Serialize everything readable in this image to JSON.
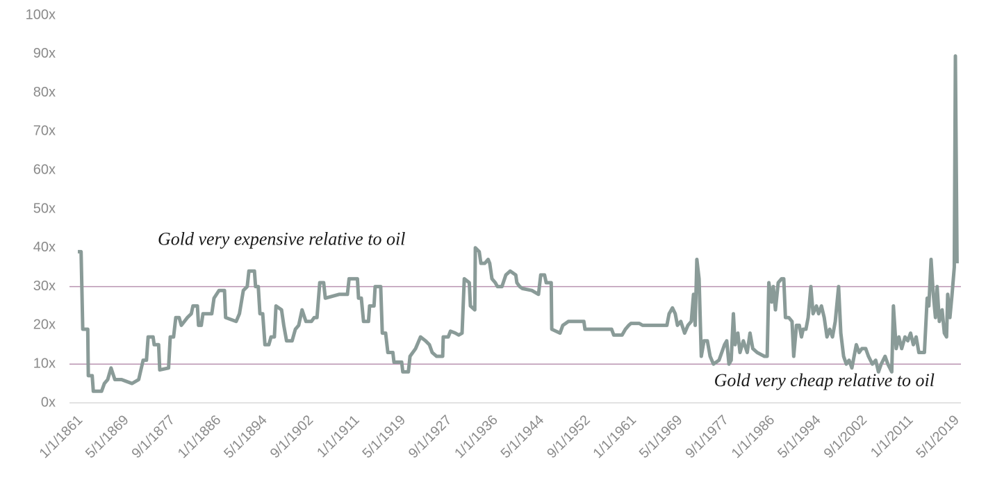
{
  "chart_data": {
    "type": "line",
    "x": [
      1861.0,
      1861.6,
      1861.9,
      1862.8,
      1862.9,
      1863.6,
      1863.8,
      1865.3,
      1865.8,
      1866.4,
      1867.0,
      1867.7,
      1868.9,
      1870.8,
      1872.0,
      1872.8,
      1873.4,
      1873.7,
      1874.6,
      1874.8,
      1875.6,
      1875.8,
      1877.4,
      1877.7,
      1878.3,
      1878.7,
      1879.3,
      1879.7,
      1880.8,
      1881.5,
      1881.8,
      1882.6,
      1882.8,
      1883.3,
      1883.6,
      1885.2,
      1885.6,
      1886.5,
      1887.5,
      1887.7,
      1889.6,
      1890.2,
      1890.9,
      1891.6,
      1891.9,
      1892.9,
      1893.1,
      1893.6,
      1893.9,
      1894.4,
      1894.8,
      1895.5,
      1895.9,
      1896.5,
      1896.8,
      1897.8,
      1898.2,
      1898.7,
      1899.7,
      1900.3,
      1900.9,
      1901.5,
      1902.2,
      1903.2,
      1903.7,
      1904.2,
      1904.7,
      1905.4,
      1905.7,
      1908.2,
      1909.7,
      1910.0,
      1911.5,
      1911.7,
      1912.2,
      1912.6,
      1913.5,
      1913.7,
      1914.5,
      1914.7,
      1915.7,
      1916.0,
      1916.6,
      1917.0,
      1917.9,
      1918.1,
      1919.5,
      1919.7,
      1920.7,
      1921.0,
      1922.0,
      1922.9,
      1923.8,
      1924.5,
      1925.0,
      1925.8,
      1926.9,
      1927.0,
      1927.9,
      1928.3,
      1929.2,
      1929.8,
      1930.4,
      1930.8,
      1931.7,
      1931.9,
      1932.7,
      1932.8,
      1933.5,
      1933.8,
      1934.5,
      1935.1,
      1935.4,
      1935.8,
      1936.4,
      1936.8,
      1937.6,
      1938.3,
      1939.1,
      1940.1,
      1940.3,
      1940.8,
      1941.3,
      1943.0,
      1944.2,
      1944.6,
      1945.3,
      1945.6,
      1946.5,
      1946.6,
      1948.1,
      1948.6,
      1949.6,
      1952.4,
      1952.6,
      1956.1,
      1957.4,
      1957.8,
      1959.3,
      1959.9,
      1960.5,
      1960.9,
      1962.4,
      1963.0,
      1967.4,
      1967.8,
      1968.4,
      1968.9,
      1969.3,
      1969.9,
      1970.6,
      1971.2,
      1971.8,
      1972.2,
      1972.5,
      1972.8,
      1973.2,
      1973.6,
      1974.1,
      1974.7,
      1975.2,
      1975.8,
      1976.8,
      1977.8,
      1978.2,
      1978.6,
      1979.0,
      1979.4,
      1979.7,
      1980.2,
      1980.6,
      1981.2,
      1981.9,
      1982.4,
      1982.9,
      1983.7,
      1985.0,
      1985.5,
      1985.8,
      1986.3,
      1986.6,
      1987.0,
      1987.5,
      1988.1,
      1988.5,
      1988.8,
      1989.4,
      1990.0,
      1990.3,
      1990.8,
      1991.3,
      1991.7,
      1992.0,
      1992.5,
      1992.9,
      1993.4,
      1993.8,
      1994.4,
      1994.8,
      1995.3,
      1995.8,
      1996.3,
      1996.8,
      1997.3,
      1997.8,
      1998.4,
      1998.8,
      1999.3,
      1999.8,
      2000.3,
      2000.8,
      2001.6,
      2002.1,
      2002.6,
      2003.3,
      2003.8,
      2004.5,
      2005.1,
      2005.6,
      2006.1,
      2006.8,
      2007.3,
      2008.0,
      2008.3,
      2008.8,
      2009.3,
      2009.8,
      2010.4,
      2010.9,
      2011.4,
      2011.9,
      2012.4,
      2012.9,
      2013.4,
      2013.9,
      2014.4,
      2014.7,
      2015.1,
      2015.5,
      2015.9,
      2016.2,
      2016.6,
      2017.1,
      2017.5,
      2017.9,
      2018.1,
      2018.5,
      2018.9,
      2019.3,
      2019.5,
      2019.8
    ],
    "series": [
      {
        "color": "#8a9b98",
        "values": [
          39,
          39,
          19,
          19,
          7,
          7,
          3,
          3,
          5,
          6,
          9,
          6,
          6,
          5,
          6,
          11,
          11,
          17,
          17,
          15,
          15,
          8.5,
          9,
          17,
          17,
          22,
          22,
          20,
          22,
          23,
          25,
          25,
          20,
          20,
          23,
          23,
          27,
          29,
          29,
          22,
          21,
          23,
          29,
          30,
          34,
          34,
          30,
          30,
          23,
          23,
          15,
          15,
          17,
          17,
          25,
          24,
          20,
          16,
          16,
          19,
          20,
          24,
          21,
          21,
          22,
          22,
          31,
          31,
          27,
          28,
          28,
          32,
          32,
          27,
          27,
          21,
          21,
          25,
          25,
          30,
          30,
          18,
          18,
          13,
          13,
          10.5,
          10.5,
          8,
          8,
          12,
          14,
          17,
          16,
          15,
          13,
          12,
          12,
          17,
          17,
          18.5,
          18,
          17.5,
          18,
          32,
          31,
          25,
          24,
          40,
          39,
          36,
          36,
          37,
          36,
          32,
          31,
          30,
          30,
          33,
          34,
          33,
          31,
          30,
          29.5,
          29,
          28,
          33,
          33,
          31,
          31,
          19,
          18,
          20,
          21,
          21,
          19,
          19,
          19,
          17.5,
          17.5,
          19,
          20,
          20.5,
          20.5,
          20,
          20,
          23,
          24.5,
          23,
          20,
          21,
          18,
          20,
          21,
          28,
          20,
          37,
          32,
          12,
          16,
          16,
          12,
          10,
          11,
          15,
          16,
          10,
          11,
          23,
          15,
          18,
          13,
          16,
          13,
          18,
          14,
          13,
          12,
          12,
          31,
          26,
          30,
          24,
          31,
          32,
          32,
          22,
          22,
          21,
          12,
          20,
          20,
          17,
          19,
          19,
          22,
          30,
          23,
          25,
          23,
          25,
          22,
          17,
          19,
          17,
          21,
          30,
          18,
          12,
          10,
          11,
          9,
          15,
          13,
          14,
          14,
          12,
          10,
          11,
          8,
          10,
          12,
          10,
          8,
          25,
          14,
          17,
          14,
          17,
          16,
          18,
          15,
          17,
          13,
          13,
          13,
          27,
          25,
          37,
          28,
          22,
          30,
          21,
          24,
          18,
          17,
          28,
          22,
          28,
          35,
          89.5,
          36
        ]
      }
    ],
    "xlim": [
      1859.5,
      2020.5
    ],
    "xticks": [
      {
        "value": 1861.0,
        "label": "1/1/1861"
      },
      {
        "value": 1869.33,
        "label": "5/1/1869"
      },
      {
        "value": 1877.67,
        "label": "9/1/1877"
      },
      {
        "value": 1886.0,
        "label": "1/1/1886"
      },
      {
        "value": 1894.33,
        "label": "5/1/1894"
      },
      {
        "value": 1902.67,
        "label": "9/1/1902"
      },
      {
        "value": 1911.0,
        "label": "1/1/1911"
      },
      {
        "value": 1919.33,
        "label": "5/1/1919"
      },
      {
        "value": 1927.67,
        "label": "9/1/1927"
      },
      {
        "value": 1936.0,
        "label": "1/1/1936"
      },
      {
        "value": 1944.33,
        "label": "5/1/1944"
      },
      {
        "value": 1952.67,
        "label": "9/1/1952"
      },
      {
        "value": 1961.0,
        "label": "1/1/1961"
      },
      {
        "value": 1969.33,
        "label": "5/1/1969"
      },
      {
        "value": 1977.67,
        "label": "9/1/1977"
      },
      {
        "value": 1986.0,
        "label": "1/1/1986"
      },
      {
        "value": 1994.33,
        "label": "5/1/1994"
      },
      {
        "value": 2002.67,
        "label": "9/1/2002"
      },
      {
        "value": 2011.0,
        "label": "1/1/2011"
      },
      {
        "value": 2019.33,
        "label": "5/1/2019"
      }
    ],
    "ylim": [
      0,
      100
    ],
    "yticks": [
      {
        "value": 0,
        "label": "0x"
      },
      {
        "value": 10,
        "label": "10x"
      },
      {
        "value": 20,
        "label": "20x"
      },
      {
        "value": 30,
        "label": "30x"
      },
      {
        "value": 40,
        "label": "40x"
      },
      {
        "value": 50,
        "label": "50x"
      },
      {
        "value": 60,
        "label": "60x"
      },
      {
        "value": 70,
        "label": "70x"
      },
      {
        "value": 80,
        "label": "80x"
      },
      {
        "value": 90,
        "label": "90x"
      },
      {
        "value": 100,
        "label": "100x"
      }
    ],
    "grid": false,
    "reference_lines": [
      {
        "value": 30,
        "label": "Gold very expensive relative to oil",
        "color": "#b993b0"
      },
      {
        "value": 10,
        "label": "Gold very cheap relative to oil",
        "color": "#b993b0"
      }
    ]
  }
}
